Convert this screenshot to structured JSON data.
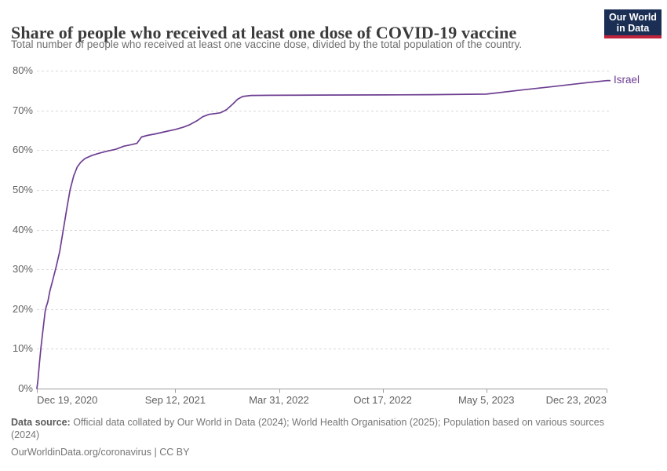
{
  "header": {
    "title": "Share of people who received at least one dose of COVID-19 vaccine",
    "subtitle": "Total number of people who received at least one vaccine dose, divided by the total population of the country.",
    "logo_line1": "Our World",
    "logo_line2": "in Data",
    "logo_bg_color": "#1b2f55",
    "logo_stripe_color": "#c0243c"
  },
  "footer": {
    "source_label": "Data source:",
    "source_text": " Official data collated by Our World in Data (2024); World Health Organisation (2025); Population based on various sources (2024)",
    "license": "OurWorldinData.org/coronavirus | CC BY"
  },
  "chart_data": {
    "type": "line",
    "title": "Share of people who received at least one dose of COVID-19 vaccine",
    "xlabel": "",
    "ylabel": "",
    "ylim": [
      0,
      80
    ],
    "x_domain": [
      "2020-12-19",
      "2023-12-23"
    ],
    "grid": true,
    "grid_color": "#d8d8d8",
    "axis_color": "#9e9e9e",
    "y_ticks": [
      {
        "value": 0,
        "label": "0%"
      },
      {
        "value": 10,
        "label": "10%"
      },
      {
        "value": 20,
        "label": "20%"
      },
      {
        "value": 30,
        "label": "30%"
      },
      {
        "value": 40,
        "label": "40%"
      },
      {
        "value": 50,
        "label": "50%"
      },
      {
        "value": 60,
        "label": "60%"
      },
      {
        "value": 70,
        "label": "70%"
      },
      {
        "value": 80,
        "label": "80%"
      }
    ],
    "x_ticks": [
      {
        "date": "2020-12-19",
        "label": "Dec 19, 2020",
        "align": "left"
      },
      {
        "date": "2021-09-12",
        "label": "Sep 12, 2021",
        "align": "center"
      },
      {
        "date": "2022-03-31",
        "label": "Mar 31, 2022",
        "align": "center"
      },
      {
        "date": "2022-10-17",
        "label": "Oct 17, 2022",
        "align": "center"
      },
      {
        "date": "2023-05-05",
        "label": "May 5, 2023",
        "align": "center"
      },
      {
        "date": "2023-12-23",
        "label": "Dec 23, 2023",
        "align": "right"
      }
    ],
    "series": [
      {
        "name": "Israel",
        "color": "#6D3E91",
        "points": [
          [
            "2020-12-19",
            0
          ],
          [
            "2020-12-21",
            2
          ],
          [
            "2020-12-24",
            6.5
          ],
          [
            "2020-12-27",
            10.5
          ],
          [
            "2020-12-31",
            15
          ],
          [
            "2021-01-04",
            19.5
          ],
          [
            "2021-01-06",
            20.6
          ],
          [
            "2021-01-09",
            21.8
          ],
          [
            "2021-01-13",
            24.5
          ],
          [
            "2021-01-19",
            27.5
          ],
          [
            "2021-01-25",
            30.5
          ],
          [
            "2021-02-01",
            34.5
          ],
          [
            "2021-02-08",
            40
          ],
          [
            "2021-02-15",
            45.5
          ],
          [
            "2021-02-21",
            50
          ],
          [
            "2021-02-28",
            53.5
          ],
          [
            "2021-03-07",
            55.8
          ],
          [
            "2021-03-14",
            57
          ],
          [
            "2021-03-22",
            57.9
          ],
          [
            "2021-04-05",
            58.7
          ],
          [
            "2021-04-20",
            59.3
          ],
          [
            "2021-05-05",
            59.8
          ],
          [
            "2021-05-20",
            60.2
          ],
          [
            "2021-06-05",
            61.0
          ],
          [
            "2021-06-20",
            61.4
          ],
          [
            "2021-06-30",
            61.7
          ],
          [
            "2021-07-09",
            63.3
          ],
          [
            "2021-07-20",
            63.7
          ],
          [
            "2021-08-05",
            64.1
          ],
          [
            "2021-08-25",
            64.7
          ],
          [
            "2021-09-12",
            65.2
          ],
          [
            "2021-09-28",
            65.8
          ],
          [
            "2021-10-10",
            66.4
          ],
          [
            "2021-10-24",
            67.4
          ],
          [
            "2021-11-04",
            68.4
          ],
          [
            "2021-11-16",
            69.0
          ],
          [
            "2021-11-28",
            69.2
          ],
          [
            "2021-12-08",
            69.4
          ],
          [
            "2021-12-20",
            70.2
          ],
          [
            "2022-01-01",
            71.6
          ],
          [
            "2022-01-10",
            72.8
          ],
          [
            "2022-01-20",
            73.5
          ],
          [
            "2022-02-05",
            73.75
          ],
          [
            "2022-03-15",
            73.8
          ],
          [
            "2022-06-15",
            73.85
          ],
          [
            "2022-10-17",
            73.9
          ],
          [
            "2023-01-15",
            73.95
          ],
          [
            "2023-05-05",
            74.1
          ],
          [
            "2023-07-10",
            75.1
          ],
          [
            "2023-09-10",
            76.0
          ],
          [
            "2023-11-10",
            76.9
          ],
          [
            "2023-12-23",
            77.5
          ]
        ]
      }
    ],
    "legend_position": "end-of-line"
  }
}
